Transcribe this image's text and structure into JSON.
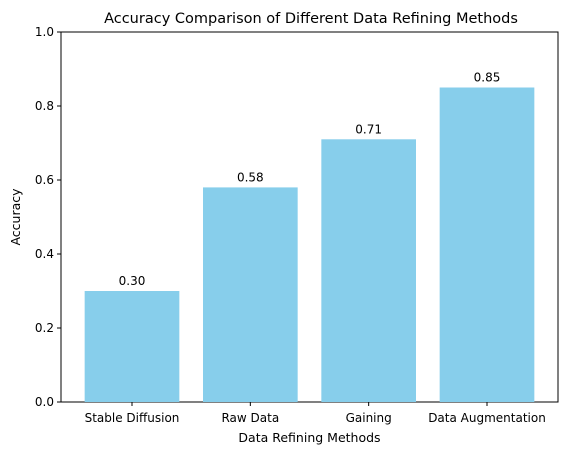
{
  "chart_data": {
    "type": "bar",
    "title": "Accuracy Comparison of Different Data Refining Methods",
    "xlabel": "Data Refining Methods",
    "ylabel": "Accuracy",
    "categories": [
      "Stable Diffusion",
      "Raw Data",
      "Gaining",
      "Data Augmentation"
    ],
    "values": [
      0.3,
      0.58,
      0.71,
      0.85
    ],
    "data_labels": [
      "0.30",
      "0.58",
      "0.71",
      "0.85"
    ],
    "ylim": [
      0,
      1
    ],
    "yticks": [
      0.0,
      0.2,
      0.4,
      0.6,
      0.8,
      1.0
    ],
    "ytick_labels": [
      "0.0",
      "0.2",
      "0.4",
      "0.6",
      "0.8",
      "1.0"
    ],
    "bar_color": "#87ceeb",
    "grid": false,
    "legend": "none"
  }
}
